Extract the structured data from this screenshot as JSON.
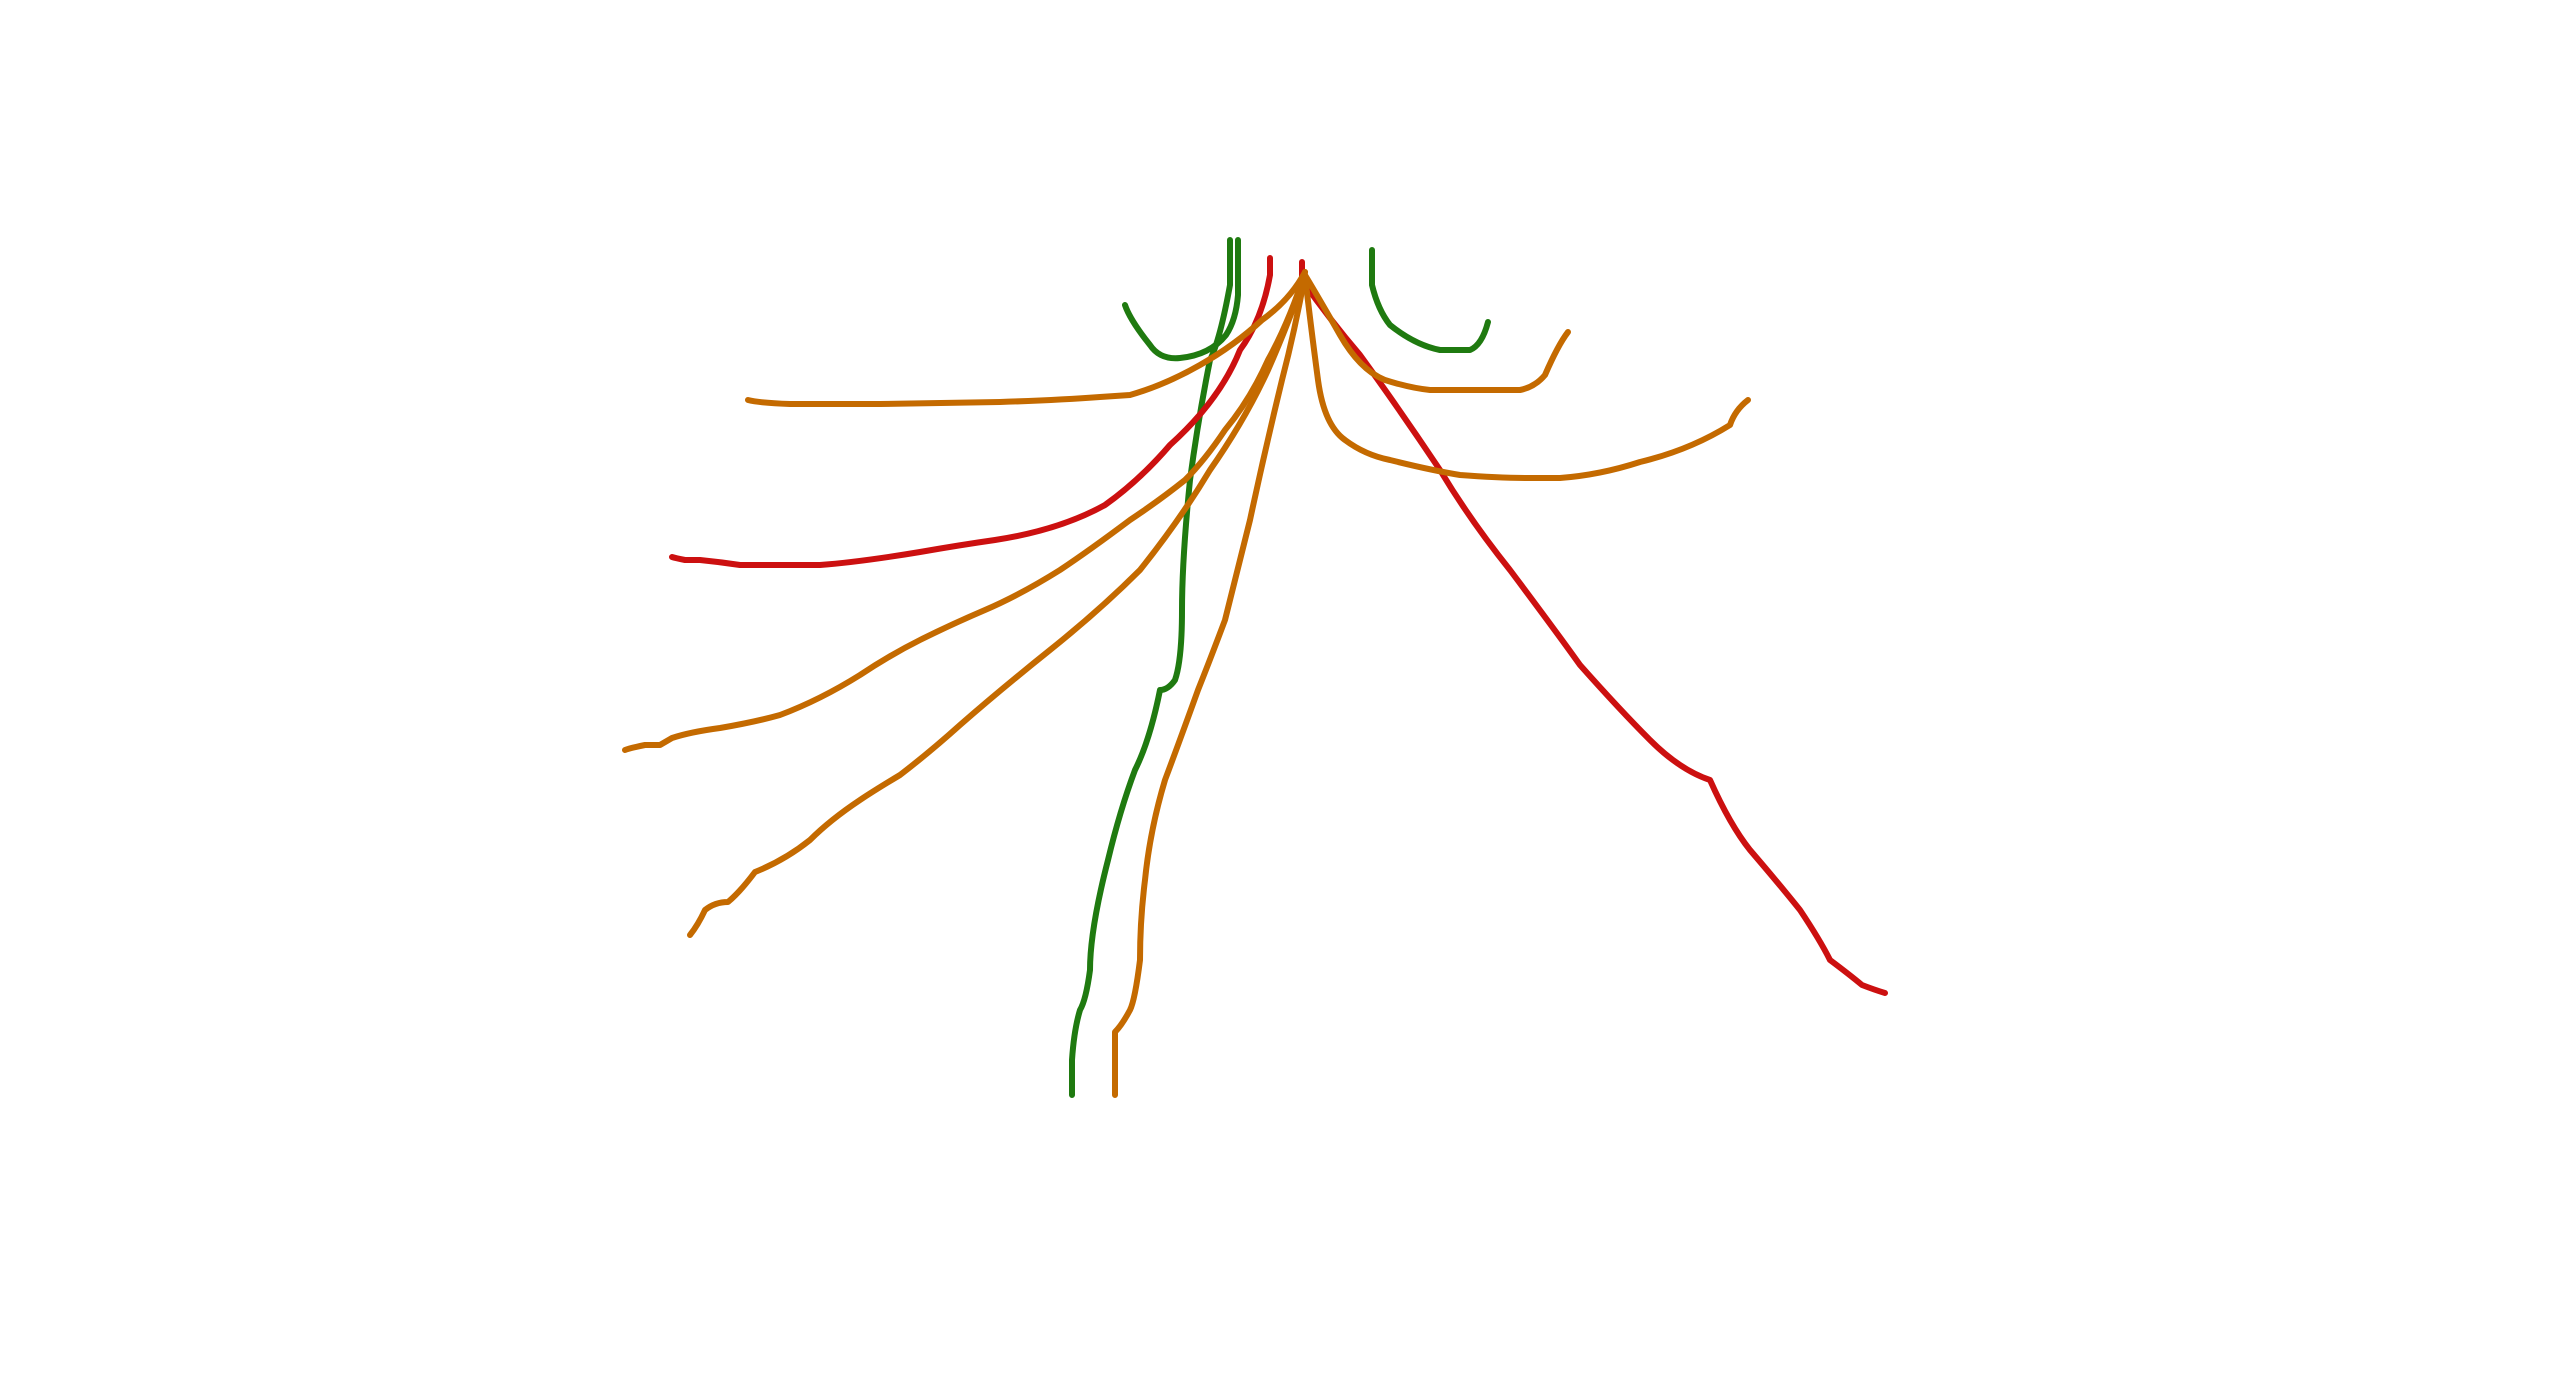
{
  "canvas": {
    "background": "#ffffff"
  },
  "palette": {
    "green": "#1f7a10",
    "red": "#cc1010",
    "orange": "#c46a00"
  }
}
